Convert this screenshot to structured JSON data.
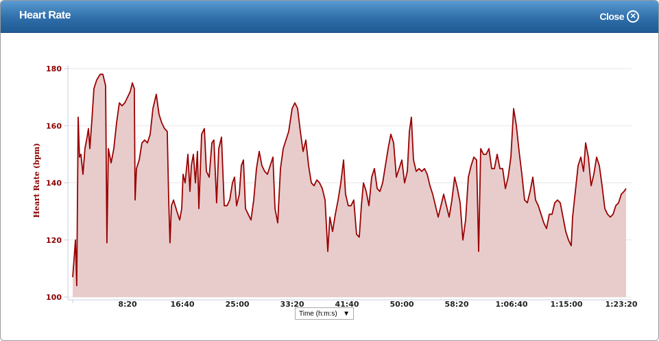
{
  "window": {
    "title": "Heart Rate",
    "close_label": "Close"
  },
  "x_axis_selector": {
    "selected": "Time (h:m:s)"
  },
  "chart_data": {
    "type": "area",
    "title": "Heart Rate",
    "xlabel": "Time (h:m:s)",
    "ylabel": "Heart Rate (bpm)",
    "xlim": [
      0,
      5044
    ],
    "ylim": [
      100,
      180
    ],
    "x_ticks": [
      {
        "value": 500,
        "label": "8:20"
      },
      {
        "value": 1000,
        "label": "16:40"
      },
      {
        "value": 1500,
        "label": "25:00"
      },
      {
        "value": 2000,
        "label": "33:20"
      },
      {
        "value": 2500,
        "label": "41:40"
      },
      {
        "value": 3000,
        "label": "50:00"
      },
      {
        "value": 3500,
        "label": "58:20"
      },
      {
        "value": 4000,
        "label": "1:06:40"
      },
      {
        "value": 4500,
        "label": "1:15:00"
      },
      {
        "value": 5000,
        "label": "1:23:20"
      }
    ],
    "y_ticks": [
      100,
      120,
      140,
      160,
      180
    ],
    "grid": true,
    "colors": {
      "line": "#990000",
      "fill": "#e8cccc"
    },
    "points": [
      [
        0,
        107
      ],
      [
        12,
        113
      ],
      [
        25,
        120
      ],
      [
        37,
        104
      ],
      [
        50,
        163
      ],
      [
        62,
        149
      ],
      [
        75,
        150
      ],
      [
        94,
        143
      ],
      [
        112,
        152
      ],
      [
        131,
        156
      ],
      [
        144,
        159
      ],
      [
        156,
        152
      ],
      [
        175,
        162
      ],
      [
        194,
        173
      ],
      [
        219,
        176
      ],
      [
        250,
        178
      ],
      [
        275,
        178
      ],
      [
        300,
        174
      ],
      [
        312,
        119
      ],
      [
        325,
        152
      ],
      [
        350,
        147
      ],
      [
        375,
        152
      ],
      [
        400,
        161
      ],
      [
        425,
        168
      ],
      [
        450,
        167
      ],
      [
        475,
        168
      ],
      [
        500,
        170
      ],
      [
        525,
        172
      ],
      [
        544,
        175
      ],
      [
        562,
        173
      ],
      [
        569,
        134
      ],
      [
        581,
        145
      ],
      [
        606,
        148
      ],
      [
        631,
        154
      ],
      [
        656,
        155
      ],
      [
        681,
        154
      ],
      [
        706,
        157
      ],
      [
        731,
        166
      ],
      [
        762,
        171
      ],
      [
        787,
        164
      ],
      [
        812,
        161
      ],
      [
        837,
        159
      ],
      [
        862,
        158
      ],
      [
        875,
        134
      ],
      [
        887,
        119
      ],
      [
        900,
        132
      ],
      [
        919,
        134
      ],
      [
        950,
        130
      ],
      [
        975,
        127
      ],
      [
        994,
        131
      ],
      [
        1006,
        143
      ],
      [
        1025,
        140
      ],
      [
        1050,
        150
      ],
      [
        1069,
        137
      ],
      [
        1081,
        146
      ],
      [
        1100,
        150
      ],
      [
        1119,
        140
      ],
      [
        1137,
        151
      ],
      [
        1150,
        131
      ],
      [
        1175,
        157
      ],
      [
        1200,
        159
      ],
      [
        1219,
        144
      ],
      [
        1244,
        142
      ],
      [
        1269,
        154
      ],
      [
        1287,
        155
      ],
      [
        1312,
        133
      ],
      [
        1331,
        152
      ],
      [
        1356,
        156
      ],
      [
        1381,
        132
      ],
      [
        1406,
        132
      ],
      [
        1431,
        134
      ],
      [
        1456,
        140
      ],
      [
        1475,
        142
      ],
      [
        1494,
        132
      ],
      [
        1519,
        136
      ],
      [
        1537,
        146
      ],
      [
        1556,
        148
      ],
      [
        1575,
        131
      ],
      [
        1600,
        129
      ],
      [
        1625,
        127
      ],
      [
        1650,
        134
      ],
      [
        1675,
        145
      ],
      [
        1700,
        151
      ],
      [
        1725,
        146
      ],
      [
        1750,
        144
      ],
      [
        1775,
        143
      ],
      [
        1800,
        146
      ],
      [
        1825,
        149
      ],
      [
        1844,
        131
      ],
      [
        1869,
        126
      ],
      [
        1894,
        145
      ],
      [
        1919,
        152
      ],
      [
        1944,
        155
      ],
      [
        1969,
        158
      ],
      [
        2000,
        166
      ],
      [
        2025,
        168
      ],
      [
        2050,
        166
      ],
      [
        2075,
        158
      ],
      [
        2100,
        151
      ],
      [
        2125,
        155
      ],
      [
        2150,
        146
      ],
      [
        2175,
        140
      ],
      [
        2200,
        139
      ],
      [
        2225,
        141
      ],
      [
        2250,
        140
      ],
      [
        2275,
        138
      ],
      [
        2300,
        134
      ],
      [
        2325,
        116
      ],
      [
        2344,
        128
      ],
      [
        2369,
        123
      ],
      [
        2394,
        129
      ],
      [
        2419,
        134
      ],
      [
        2444,
        140
      ],
      [
        2469,
        148
      ],
      [
        2487,
        136
      ],
      [
        2512,
        132
      ],
      [
        2537,
        132
      ],
      [
        2562,
        134
      ],
      [
        2587,
        122
      ],
      [
        2612,
        121
      ],
      [
        2631,
        132
      ],
      [
        2650,
        140
      ],
      [
        2675,
        137
      ],
      [
        2700,
        132
      ],
      [
        2725,
        142
      ],
      [
        2750,
        145
      ],
      [
        2775,
        138
      ],
      [
        2800,
        137
      ],
      [
        2825,
        140
      ],
      [
        2850,
        146
      ],
      [
        2875,
        152
      ],
      [
        2900,
        157
      ],
      [
        2925,
        154
      ],
      [
        2950,
        142
      ],
      [
        2975,
        145
      ],
      [
        3000,
        148
      ],
      [
        3025,
        140
      ],
      [
        3050,
        144
      ],
      [
        3069,
        158
      ],
      [
        3087,
        163
      ],
      [
        3106,
        148
      ],
      [
        3131,
        144
      ],
      [
        3156,
        145
      ],
      [
        3181,
        144
      ],
      [
        3206,
        145
      ],
      [
        3231,
        143
      ],
      [
        3256,
        139
      ],
      [
        3281,
        136
      ],
      [
        3306,
        132
      ],
      [
        3331,
        128
      ],
      [
        3356,
        132
      ],
      [
        3381,
        136
      ],
      [
        3406,
        132
      ],
      [
        3431,
        128
      ],
      [
        3456,
        134
      ],
      [
        3481,
        142
      ],
      [
        3506,
        138
      ],
      [
        3531,
        133
      ],
      [
        3556,
        120
      ],
      [
        3581,
        127
      ],
      [
        3606,
        142
      ],
      [
        3631,
        146
      ],
      [
        3656,
        149
      ],
      [
        3681,
        148
      ],
      [
        3700,
        116
      ],
      [
        3719,
        152
      ],
      [
        3744,
        150
      ],
      [
        3769,
        150
      ],
      [
        3794,
        152
      ],
      [
        3819,
        145
      ],
      [
        3844,
        145
      ],
      [
        3869,
        150
      ],
      [
        3894,
        145
      ],
      [
        3919,
        145
      ],
      [
        3944,
        138
      ],
      [
        3969,
        142
      ],
      [
        3994,
        149
      ],
      [
        4019,
        166
      ],
      [
        4044,
        160
      ],
      [
        4069,
        151
      ],
      [
        4094,
        143
      ],
      [
        4119,
        134
      ],
      [
        4144,
        133
      ],
      [
        4169,
        137
      ],
      [
        4194,
        142
      ],
      [
        4219,
        134
      ],
      [
        4244,
        132
      ],
      [
        4269,
        129
      ],
      [
        4294,
        126
      ],
      [
        4319,
        124
      ],
      [
        4344,
        129
      ],
      [
        4369,
        129
      ],
      [
        4394,
        133
      ],
      [
        4419,
        134
      ],
      [
        4444,
        133
      ],
      [
        4469,
        128
      ],
      [
        4494,
        123
      ],
      [
        4519,
        120
      ],
      [
        4544,
        118
      ],
      [
        4556,
        128
      ],
      [
        4581,
        137
      ],
      [
        4606,
        146
      ],
      [
        4631,
        149
      ],
      [
        4656,
        144
      ],
      [
        4675,
        154
      ],
      [
        4700,
        149
      ],
      [
        4725,
        139
      ],
      [
        4750,
        143
      ],
      [
        4775,
        149
      ],
      [
        4800,
        146
      ],
      [
        4825,
        139
      ],
      [
        4850,
        131
      ],
      [
        4875,
        129
      ],
      [
        4900,
        128
      ],
      [
        4925,
        129
      ],
      [
        4950,
        132
      ],
      [
        4975,
        133
      ],
      [
        5000,
        136
      ],
      [
        5025,
        137
      ],
      [
        5044,
        138
      ]
    ]
  }
}
